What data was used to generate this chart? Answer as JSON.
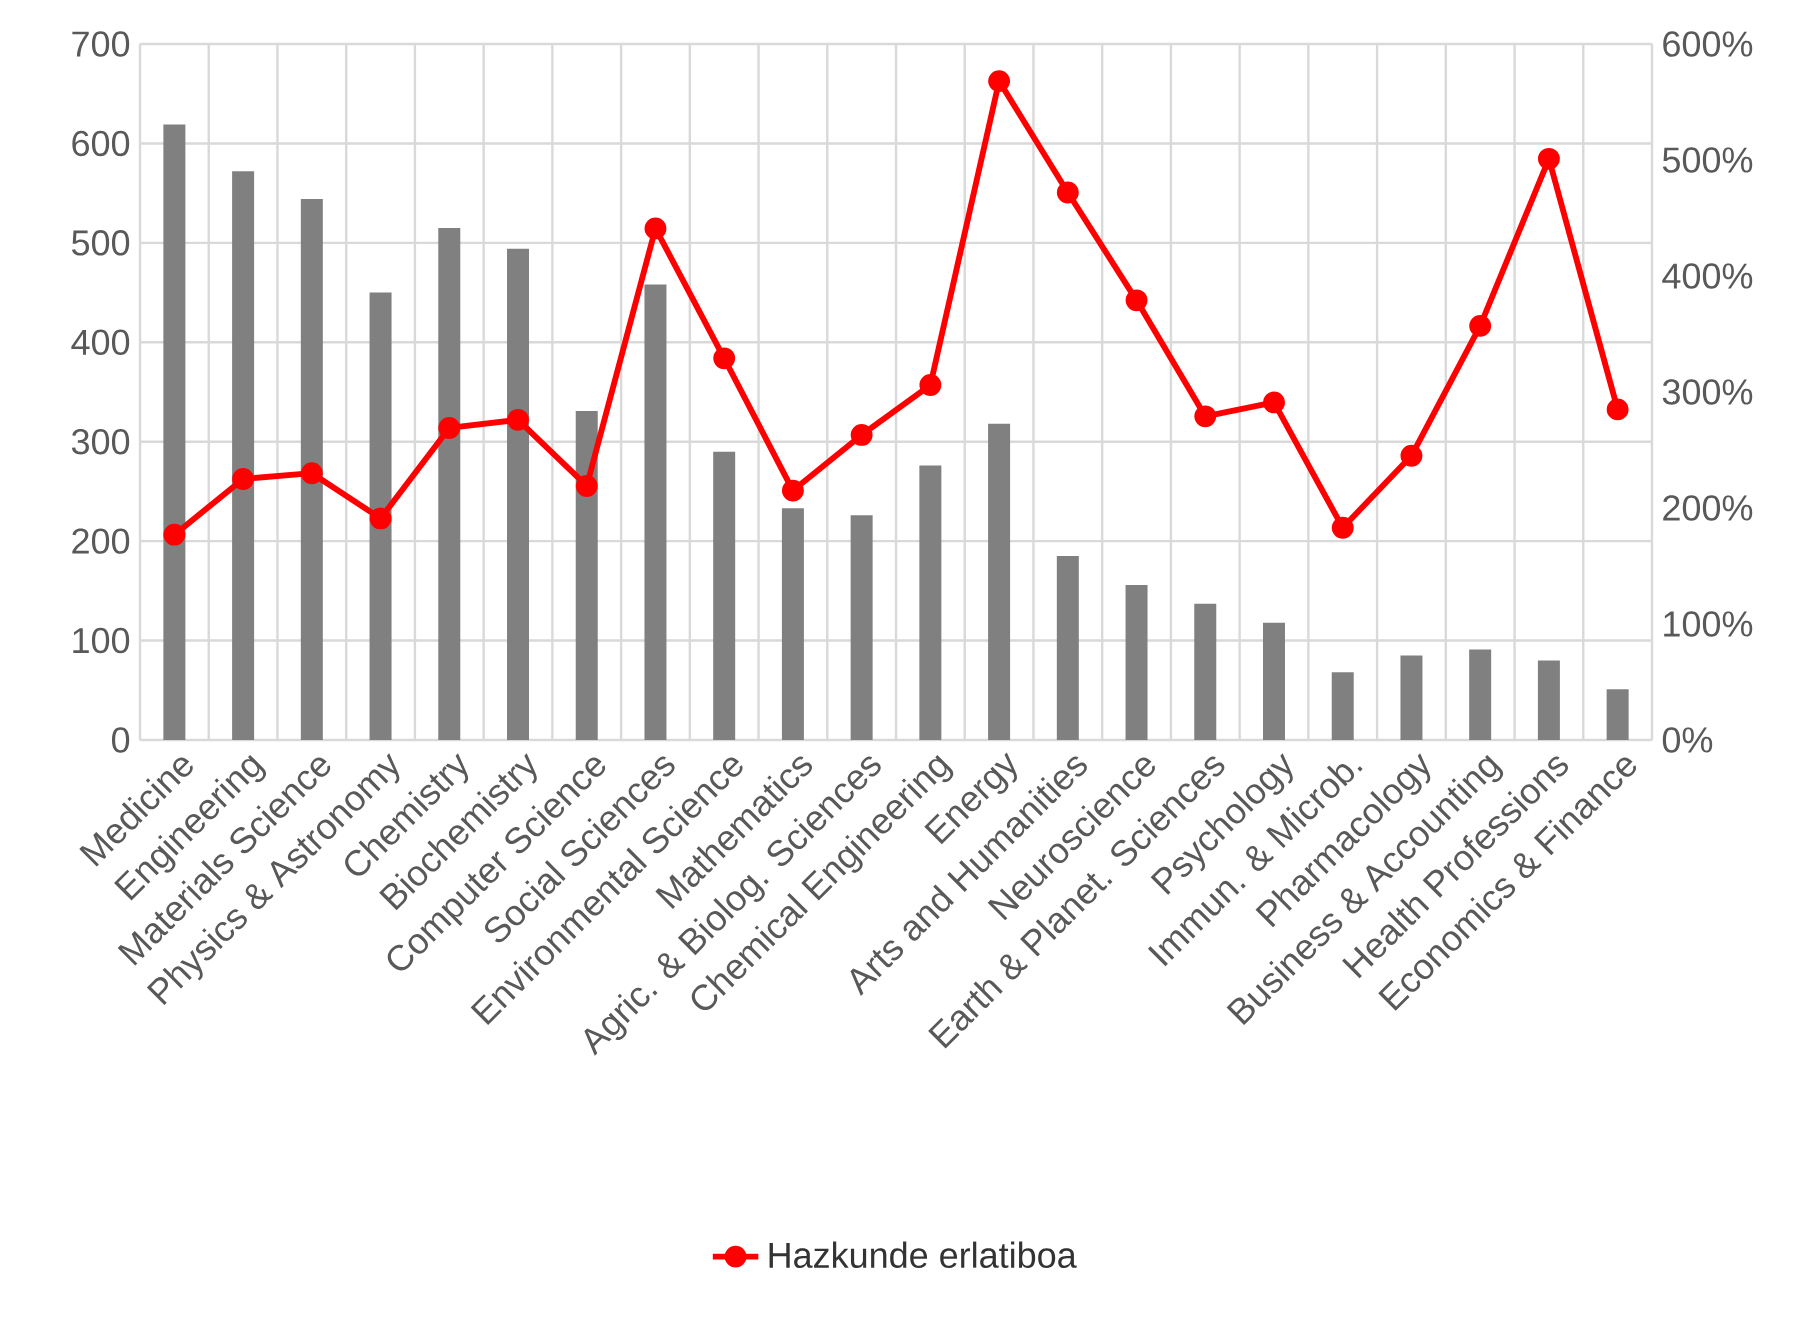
{
  "chart_data": {
    "type": "bar",
    "categories": [
      "Medicine",
      "Engineering",
      "Materials Science",
      "Physics & Astronomy",
      "Chemistry",
      "Biochemistry",
      "Computer Science",
      "Social Sciences",
      "Environmental Science",
      "Mathematics",
      "Agric. & Biolog. Sciences",
      "Chemical Engineering",
      "Energy",
      "Arts and Humanities",
      "Neuroscience",
      "Earth & Planet. Sciences",
      "Psychology",
      "Immun. & Microb.",
      "Pharmacology",
      "Business & Accounting",
      "Health Professions",
      "Economics & Finance"
    ],
    "series": [
      {
        "color": "#808080",
        "values": [
          619,
          572,
          544,
          450,
          515,
          494,
          331,
          458,
          290,
          233,
          226,
          276,
          318,
          185,
          156,
          137,
          118,
          68,
          85,
          91,
          80,
          51
        ]
      },
      {
        "type": "line",
        "name": "Hazkunde erlatiboa",
        "axis": "y2",
        "color": "#ff0000",
        "values": [
          177,
          225,
          230,
          191,
          269,
          276,
          219,
          441,
          329,
          215,
          263,
          306,
          568,
          472,
          379,
          279,
          291,
          183,
          245,
          357,
          501,
          285
        ]
      }
    ],
    "ylim": [
      0,
      700
    ],
    "yticks": [
      0,
      100,
      200,
      300,
      400,
      500,
      600,
      700
    ],
    "y2lim": [
      0,
      600
    ],
    "y2ticks": [
      {
        "value": 0,
        "label": "0%"
      },
      {
        "value": 100,
        "label": "100%"
      },
      {
        "value": 200,
        "label": "200%"
      },
      {
        "value": 300,
        "label": "300%"
      },
      {
        "value": 400,
        "label": "400%"
      },
      {
        "value": 500,
        "label": "500%"
      },
      {
        "value": 600,
        "label": "600%"
      }
    ],
    "grid": true,
    "legend": "bottom",
    "marker": "circle",
    "line_style": "solid"
  }
}
